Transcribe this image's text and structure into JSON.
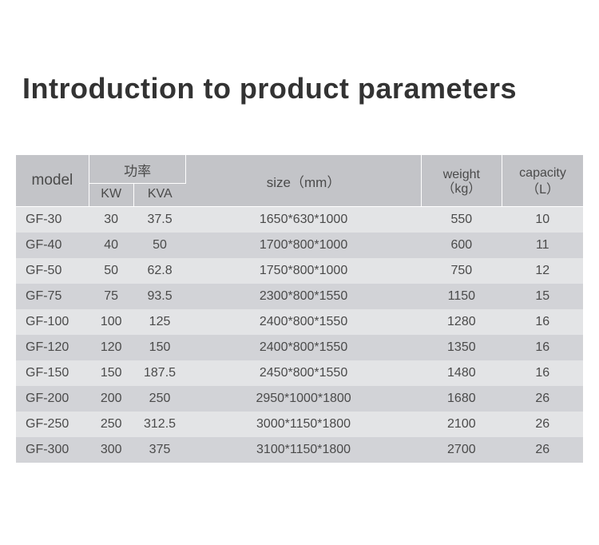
{
  "title": "Introduction to product parameters",
  "table": {
    "headers": {
      "model": "model",
      "power": "功率",
      "kw": "KW",
      "kva": "KVA",
      "size": "size（mm）",
      "weight_line1": "weight",
      "weight_line2": "（kg）",
      "capacity_line1": "capacity",
      "capacity_line2": "（L）"
    },
    "colors": {
      "header_bg": "#c3c4c8",
      "row_odd_bg": "#e3e4e6",
      "row_even_bg": "#d2d3d7",
      "text_color": "#4a4a4a",
      "page_bg": "#ffffff"
    },
    "column_widths": {
      "model": 90,
      "kw": 55,
      "kva": 65,
      "size": 290,
      "weight": 100,
      "capacity": 100
    },
    "font_sizes": {
      "title": 36,
      "header_main": 17,
      "header_model": 19,
      "header_sub": 16,
      "body": 16
    },
    "rows": [
      {
        "model": "GF-30",
        "kw": "30",
        "kva": "37.5",
        "size": "1650*630*1000",
        "weight": "550",
        "capacity": "10"
      },
      {
        "model": "GF-40",
        "kw": "40",
        "kva": "50",
        "size": "1700*800*1000",
        "weight": "600",
        "capacity": "11"
      },
      {
        "model": "GF-50",
        "kw": "50",
        "kva": "62.8",
        "size": "1750*800*1000",
        "weight": "750",
        "capacity": "12"
      },
      {
        "model": "GF-75",
        "kw": "75",
        "kva": "93.5",
        "size": "2300*800*1550",
        "weight": "1150",
        "capacity": "15"
      },
      {
        "model": "GF-100",
        "kw": "100",
        "kva": "125",
        "size": "2400*800*1550",
        "weight": "1280",
        "capacity": "16"
      },
      {
        "model": "GF-120",
        "kw": "120",
        "kva": "150",
        "size": "2400*800*1550",
        "weight": "1350",
        "capacity": "16"
      },
      {
        "model": "GF-150",
        "kw": "150",
        "kva": "187.5",
        "size": "2450*800*1550",
        "weight": "1480",
        "capacity": "16"
      },
      {
        "model": "GF-200",
        "kw": "200",
        "kva": "250",
        "size": "2950*1000*1800",
        "weight": "1680",
        "capacity": "26"
      },
      {
        "model": "GF-250",
        "kw": "250",
        "kva": "312.5",
        "size": "3000*1150*1800",
        "weight": "2100",
        "capacity": "26"
      },
      {
        "model": "GF-300",
        "kw": "300",
        "kva": "375",
        "size": "3100*1150*1800",
        "weight": "2700",
        "capacity": "26"
      }
    ]
  }
}
